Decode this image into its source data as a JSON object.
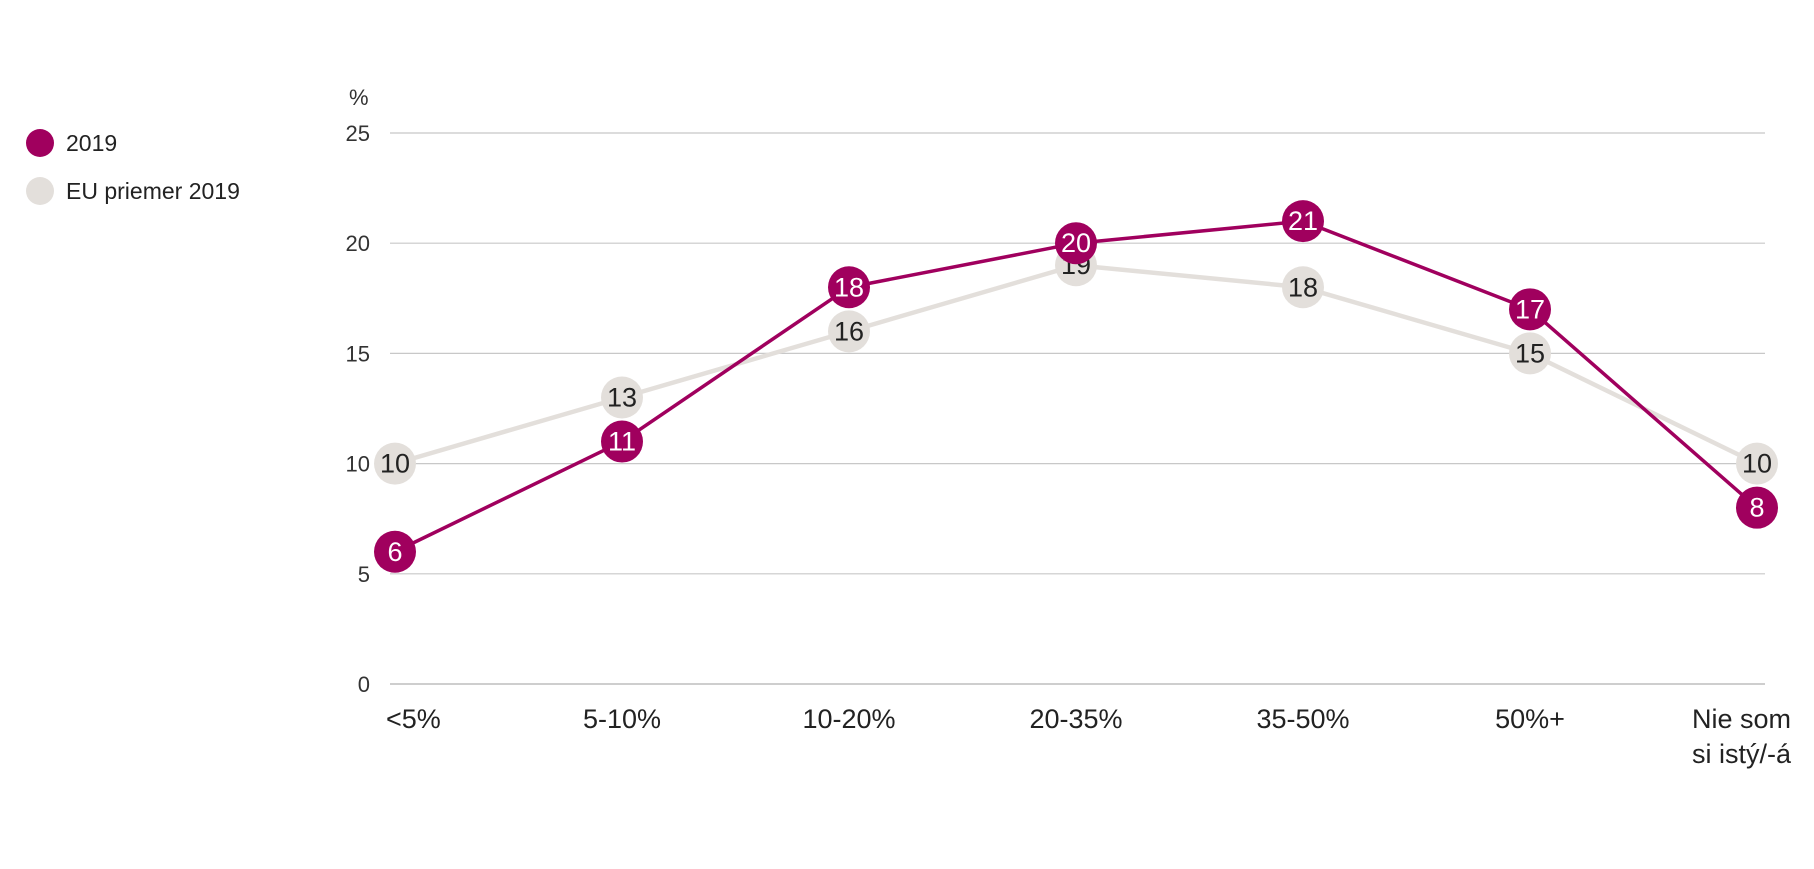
{
  "chart_data": {
    "type": "line",
    "ylabel": "%",
    "categories": [
      "<5%",
      "5-10%",
      "10-20%",
      "20-35%",
      "35-50%",
      "50%+",
      "Nie som si istý/-á"
    ],
    "category_lines": [
      [
        "<5%"
      ],
      [
        "5-10%"
      ],
      [
        "10-20%"
      ],
      [
        "20-35%"
      ],
      [
        "35-50%"
      ],
      [
        "50%+"
      ],
      [
        "Nie som",
        "si istý/-á"
      ]
    ],
    "yticks": [
      "0",
      "5",
      "10",
      "15",
      "20",
      "25"
    ],
    "ylim": [
      0,
      25
    ],
    "grid": true,
    "legend_position": "top-left",
    "series": [
      {
        "name": "2019",
        "color": "#a0005e",
        "label_color": "#ffffff",
        "values": [
          6,
          11,
          18,
          20,
          21,
          17,
          8
        ]
      },
      {
        "name": "EU priemer 2019",
        "color": "#e3dfdb",
        "label_color": "#222222",
        "values": [
          10,
          13,
          16,
          19,
          18,
          15,
          10
        ]
      }
    ]
  }
}
